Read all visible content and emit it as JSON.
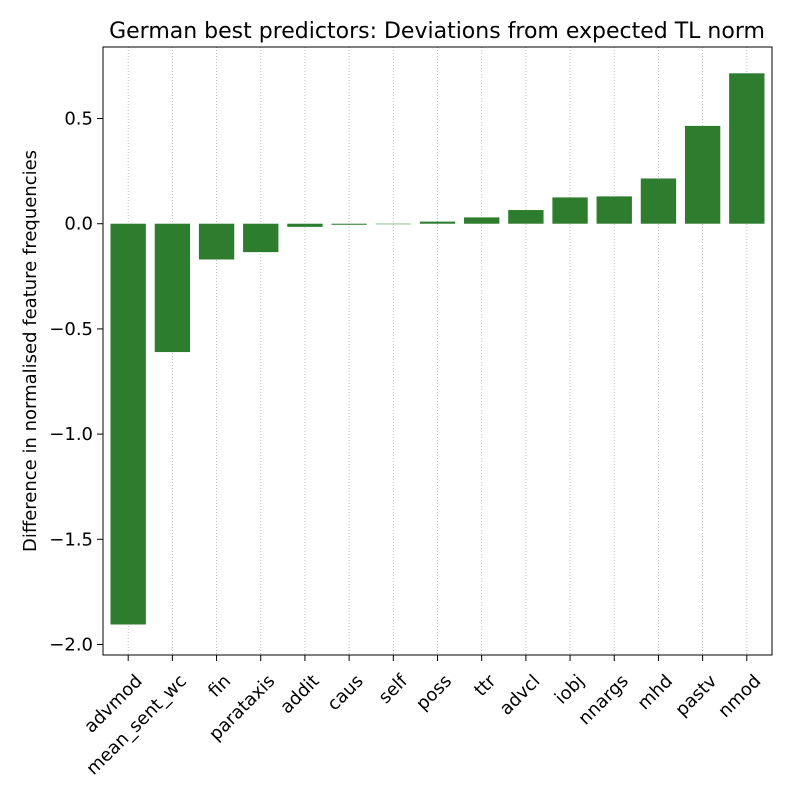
{
  "chart_data": {
    "type": "bar",
    "title": "German best predictors: Deviations from expected TL norm",
    "xlabel": "",
    "ylabel": "Difference in normalised feature frequencies",
    "categories": [
      "advmod",
      "mean_sent_wc",
      "fin",
      "parataxis",
      "addit",
      "caus",
      "self",
      "poss",
      "ttr",
      "advcl",
      "iobj",
      "nnargs",
      "mhd",
      "pastv",
      "nmod"
    ],
    "values": [
      -1.905,
      -0.61,
      -0.17,
      -0.135,
      -0.015,
      -0.005,
      0.0,
      0.01,
      0.03,
      0.065,
      0.125,
      0.13,
      0.215,
      0.465,
      0.715
    ],
    "ylim": [
      -2.05,
      0.84
    ],
    "yticks": [
      -2.0,
      -1.5,
      -1.0,
      -0.5,
      0.0,
      0.5
    ],
    "ytick_labels": [
      "−2.0",
      "−1.5",
      "−1.0",
      "−0.5",
      "0.0",
      "0.5"
    ],
    "grid": "vertical dotted",
    "bar_color": "#2e7d2e"
  }
}
